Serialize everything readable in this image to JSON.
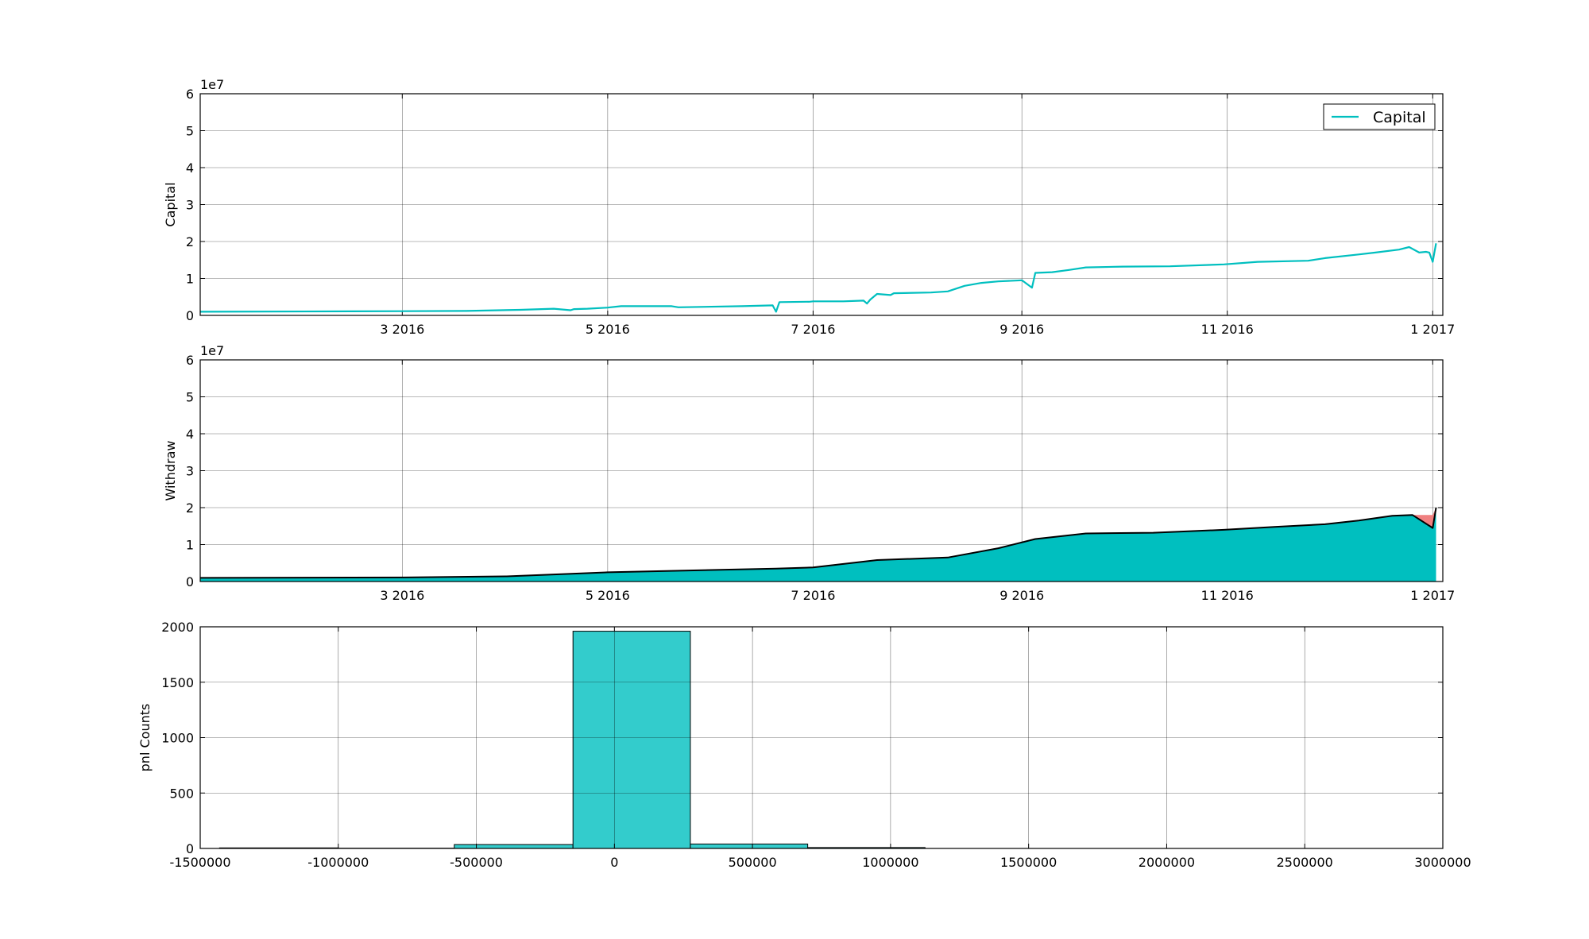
{
  "chart_data": [
    {
      "type": "line",
      "ylabel": "Capital",
      "y_offset_label": "1e7",
      "ylim": [
        0,
        6
      ],
      "yticks": [
        "0",
        "1",
        "2",
        "3",
        "4",
        "5",
        "6"
      ],
      "xlim": [
        "2016-01-01",
        "2017-01-04"
      ],
      "xticks": [
        {
          "date": "2016-03-01",
          "label": "3 2016"
        },
        {
          "date": "2016-05-01",
          "label": "5 2016"
        },
        {
          "date": "2016-07-01",
          "label": "7 2016"
        },
        {
          "date": "2016-09-01",
          "label": "9 2016"
        },
        {
          "date": "2016-11-01",
          "label": "11 2016"
        },
        {
          "date": "2017-01-01",
          "label": "1 2017"
        }
      ],
      "grid": true,
      "legend": {
        "position": "top-right",
        "entries": [
          "Capital"
        ]
      },
      "series": [
        {
          "name": "Capital",
          "color": "#00bfbf",
          "points": [
            [
              "2016-01-01",
              0.1
            ],
            [
              "2016-02-15",
              0.11
            ],
            [
              "2016-03-20",
              0.12
            ],
            [
              "2016-04-05",
              0.15
            ],
            [
              "2016-04-15",
              0.18
            ],
            [
              "2016-04-20",
              0.14
            ],
            [
              "2016-04-21",
              0.17
            ],
            [
              "2016-04-25",
              0.18
            ],
            [
              "2016-05-01",
              0.21
            ],
            [
              "2016-05-05",
              0.25
            ],
            [
              "2016-05-20",
              0.25
            ],
            [
              "2016-05-22",
              0.22
            ],
            [
              "2016-06-10",
              0.25
            ],
            [
              "2016-06-19",
              0.27
            ],
            [
              "2016-06-20",
              0.1
            ],
            [
              "2016-06-21",
              0.36
            ],
            [
              "2016-06-30",
              0.37
            ],
            [
              "2016-07-01",
              0.38
            ],
            [
              "2016-07-10",
              0.38
            ],
            [
              "2016-07-16",
              0.4
            ],
            [
              "2016-07-17",
              0.32
            ],
            [
              "2016-07-18",
              0.43
            ],
            [
              "2016-07-20",
              0.58
            ],
            [
              "2016-07-24",
              0.55
            ],
            [
              "2016-07-25",
              0.6
            ],
            [
              "2016-08-05",
              0.62
            ],
            [
              "2016-08-10",
              0.65
            ],
            [
              "2016-08-15",
              0.8
            ],
            [
              "2016-08-20",
              0.88
            ],
            [
              "2016-08-25",
              0.92
            ],
            [
              "2016-09-01",
              0.95
            ],
            [
              "2016-09-04",
              0.75
            ],
            [
              "2016-09-05",
              1.15
            ],
            [
              "2016-09-10",
              1.17
            ],
            [
              "2016-09-15",
              1.23
            ],
            [
              "2016-09-20",
              1.3
            ],
            [
              "2016-10-01",
              1.32
            ],
            [
              "2016-10-15",
              1.33
            ],
            [
              "2016-10-31",
              1.38
            ],
            [
              "2016-11-10",
              1.45
            ],
            [
              "2016-11-25",
              1.48
            ],
            [
              "2016-11-30",
              1.55
            ],
            [
              "2016-12-10",
              1.65
            ],
            [
              "2016-12-15",
              1.7
            ],
            [
              "2016-12-22",
              1.78
            ],
            [
              "2016-12-25",
              1.85
            ],
            [
              "2016-12-28",
              1.7
            ],
            [
              "2016-12-30",
              1.72
            ],
            [
              "2016-12-31",
              1.7
            ],
            [
              "2017-01-01",
              1.45
            ],
            [
              "2017-01-02",
              1.95
            ]
          ]
        }
      ]
    },
    {
      "type": "area",
      "ylabel": "Withdraw",
      "y_offset_label": "1e7",
      "ylim": [
        0,
        6
      ],
      "yticks": [
        "0",
        "1",
        "2",
        "3",
        "4",
        "5",
        "6"
      ],
      "xlim": [
        "2016-01-01",
        "2017-01-04"
      ],
      "xticks": [
        {
          "date": "2016-03-01",
          "label": "3 2016"
        },
        {
          "date": "2016-05-01",
          "label": "5 2016"
        },
        {
          "date": "2016-07-01",
          "label": "7 2016"
        },
        {
          "date": "2016-09-01",
          "label": "9 2016"
        },
        {
          "date": "2016-11-01",
          "label": "11 2016"
        },
        {
          "date": "2017-01-01",
          "label": "1 2017"
        }
      ],
      "grid": true,
      "colors": {
        "fill": "#00bfbf",
        "drawdown": "#f08080",
        "outline": "#000000"
      },
      "series": [
        {
          "name": "",
          "points": [
            [
              "2016-01-01",
              0.1
            ],
            [
              "2016-03-01",
              0.11
            ],
            [
              "2016-04-01",
              0.14
            ],
            [
              "2016-05-01",
              0.25
            ],
            [
              "2016-06-20",
              0.35
            ],
            [
              "2016-07-01",
              0.38
            ],
            [
              "2016-07-20",
              0.58
            ],
            [
              "2016-08-10",
              0.65
            ],
            [
              "2016-08-25",
              0.9
            ],
            [
              "2016-09-05",
              1.15
            ],
            [
              "2016-09-20",
              1.3
            ],
            [
              "2016-10-10",
              1.32
            ],
            [
              "2016-10-31",
              1.4
            ],
            [
              "2016-11-15",
              1.48
            ],
            [
              "2016-11-30",
              1.55
            ],
            [
              "2016-12-10",
              1.65
            ],
            [
              "2016-12-20",
              1.78
            ],
            [
              "2016-12-26",
              1.8
            ],
            [
              "2017-01-01",
              1.45
            ],
            [
              "2017-01-02",
              2.0
            ]
          ]
        }
      ]
    },
    {
      "type": "bar",
      "ylabel": "pnl Counts",
      "xlim": [
        -1500000,
        3000000
      ],
      "ylim": [
        0,
        2000
      ],
      "xticks": [
        "-1500000",
        "-1000000",
        "-500000",
        "0",
        "500000",
        "1000000",
        "1500000",
        "2000000",
        "2500000",
        "3000000"
      ],
      "yticks": [
        "0",
        "500",
        "1000",
        "1500",
        "2000"
      ],
      "grid": true,
      "bar_color": "#33cccc",
      "bins": [
        {
          "x0": -1430000,
          "x1": -1000000,
          "count": 5
        },
        {
          "x0": -1000000,
          "x1": -580000,
          "count": 2
        },
        {
          "x0": -580000,
          "x1": -150000,
          "count": 35
        },
        {
          "x0": -150000,
          "x1": 275000,
          "count": 1960
        },
        {
          "x0": 275000,
          "x1": 700000,
          "count": 40
        },
        {
          "x0": 700000,
          "x1": 1125000,
          "count": 8
        }
      ]
    }
  ]
}
